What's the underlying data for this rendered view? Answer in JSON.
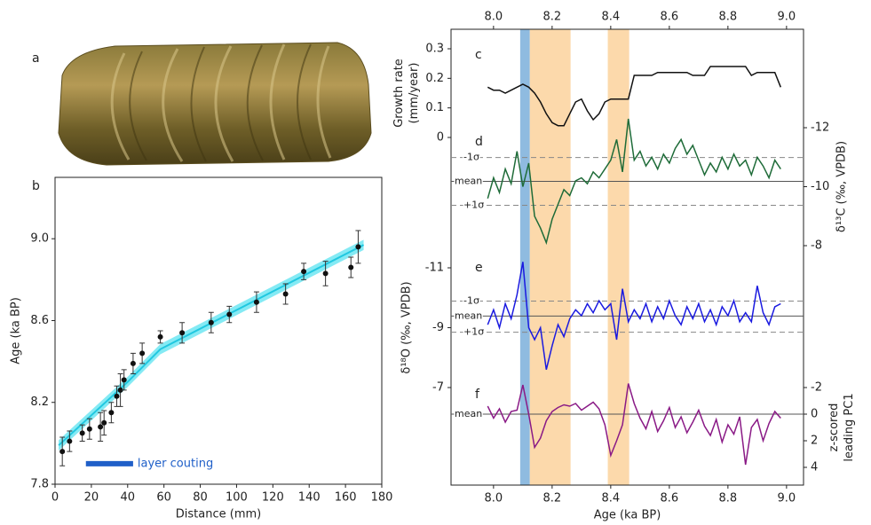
{
  "chart_data": [
    {
      "type": "scatter",
      "label": "b",
      "photo_label": "a",
      "xlabel": "Distance (mm)",
      "ylabel": "Age (ka BP)",
      "xlim": [
        0,
        180
      ],
      "ylim": [
        7.8,
        9.3
      ],
      "xticks": [
        0,
        20,
        40,
        60,
        80,
        100,
        120,
        140,
        160,
        180
      ],
      "yticks": [
        7.8,
        8.2,
        8.6,
        {
          "value": 9,
          "label": "9.0"
        }
      ],
      "x": [
        4,
        8,
        15,
        19,
        25,
        27,
        31,
        34,
        36,
        38,
        43,
        48,
        58,
        70,
        86,
        96,
        111,
        127,
        137,
        149,
        163,
        167
      ],
      "values": [
        7.96,
        8.01,
        8.05,
        8.07,
        8.08,
        8.1,
        8.15,
        8.23,
        8.26,
        8.31,
        8.39,
        8.44,
        8.52,
        8.54,
        8.59,
        8.63,
        8.69,
        8.73,
        8.84,
        8.83,
        8.86,
        8.96
      ],
      "errors": [
        0.07,
        0.05,
        0.04,
        0.05,
        0.07,
        0.06,
        0.05,
        0.05,
        0.08,
        0.05,
        0.05,
        0.05,
        0.03,
        0.05,
        0.05,
        0.04,
        0.05,
        0.05,
        0.04,
        0.06,
        0.05,
        0.08
      ],
      "color": "#111111",
      "fit": {
        "x": [
          2,
          40,
          58,
          170
        ],
        "values": [
          7.99,
          8.3,
          8.46,
          8.97
        ],
        "band": 0.025,
        "color": "#20c8e0",
        "band_color": "#6ee6f2"
      },
      "annotation": {
        "text": "layer couting",
        "range": [
          17,
          43
        ],
        "y": 7.9,
        "color": "#1f5fc8"
      }
    },
    {
      "type": "line",
      "xlabel": "Age (ka BP)",
      "xlim": [
        7.855,
        9.058
      ],
      "xticks": [
        {
          "value": 8,
          "label": "8.0"
        },
        8.2,
        8.4,
        8.6,
        8.8,
        {
          "value": 9,
          "label": "9.0"
        }
      ],
      "shaded": [
        {
          "range": [
            8.091,
            8.124
          ],
          "color": "#8fbbe0"
        },
        {
          "range": [
            8.124,
            8.263
          ],
          "color": "#fcd9ab"
        },
        {
          "range": [
            8.39,
            8.463
          ],
          "color": "#fcd9ab"
        }
      ],
      "x": [
        7.98,
        8.0,
        8.02,
        8.04,
        8.06,
        8.08,
        8.1,
        8.12,
        8.14,
        8.16,
        8.18,
        8.2,
        8.22,
        8.24,
        8.26,
        8.28,
        8.3,
        8.32,
        8.34,
        8.36,
        8.38,
        8.4,
        8.42,
        8.44,
        8.46,
        8.48,
        8.5,
        8.52,
        8.54,
        8.56,
        8.58,
        8.6,
        8.62,
        8.64,
        8.66,
        8.68,
        8.7,
        8.72,
        8.74,
        8.76,
        8.78,
        8.8,
        8.82,
        8.84,
        8.86,
        8.88,
        8.9,
        8.92,
        8.94,
        8.96,
        8.98
      ],
      "panels": [
        {
          "label": "c",
          "ylabel": [
            "Growth rate",
            "(mm/year)"
          ],
          "side": "left",
          "inverted": false,
          "ylim": [
            0,
            0.3
          ],
          "yticks": [
            0,
            0.1,
            0.2,
            0.3
          ],
          "color": "#111111",
          "values": [
            0.17,
            0.16,
            0.16,
            0.15,
            0.16,
            0.17,
            0.18,
            0.17,
            0.15,
            0.12,
            0.08,
            0.05,
            0.04,
            0.04,
            0.08,
            0.12,
            0.13,
            0.09,
            0.06,
            0.08,
            0.12,
            0.13,
            0.13,
            0.13,
            0.13,
            0.21,
            0.21,
            0.21,
            0.21,
            0.22,
            0.22,
            0.22,
            0.22,
            0.22,
            0.22,
            0.21,
            0.21,
            0.21,
            0.24,
            0.24,
            0.24,
            0.24,
            0.24,
            0.24,
            0.24,
            0.21,
            0.22,
            0.22,
            0.22,
            0.22,
            0.17
          ],
          "ref_lines": []
        },
        {
          "label": "d",
          "ylabel": [
            "δ¹³C (‰, VPDB)"
          ],
          "side": "right",
          "inverted": true,
          "ylim": [
            -12,
            -8
          ],
          "yticks": [
            -12,
            -10,
            -8
          ],
          "color": "#1e6b38",
          "values": [
            -9.6,
            -10.3,
            -9.8,
            -10.6,
            -10.1,
            -11.2,
            -10.0,
            -10.8,
            -9.0,
            -8.6,
            -8.1,
            -8.9,
            -9.4,
            -9.9,
            -9.7,
            -10.2,
            -10.3,
            -10.1,
            -10.5,
            -10.3,
            -10.6,
            -10.9,
            -11.6,
            -10.5,
            -12.3,
            -10.9,
            -11.2,
            -10.7,
            -11.0,
            -10.6,
            -11.1,
            -10.8,
            -11.3,
            -11.6,
            -11.1,
            -11.4,
            -10.9,
            -10.4,
            -10.8,
            -10.5,
            -11.0,
            -10.6,
            -11.1,
            -10.7,
            -10.9,
            -10.4,
            -11.0,
            -10.7,
            -10.3,
            -10.9,
            -10.6
          ],
          "ref_lines": [
            {
              "label": "-1σ",
              "value": -10.99,
              "dashed": true
            },
            {
              "label": "mean",
              "value": -10.18,
              "dashed": false
            },
            {
              "label": "+1σ",
              "value": -9.37,
              "dashed": true
            }
          ]
        },
        {
          "label": "e",
          "ylabel": [
            "δ¹⁸O (‰, VPDB)"
          ],
          "side": "left",
          "inverted": true,
          "ylim": [
            -11,
            -7
          ],
          "yticks": [
            -11,
            -9,
            -7
          ],
          "color": "#1a1ae0",
          "values": [
            -9.1,
            -9.6,
            -9.0,
            -9.8,
            -9.3,
            -10.1,
            -11.2,
            -9.0,
            -8.6,
            -9.0,
            -7.6,
            -8.4,
            -9.1,
            -8.7,
            -9.3,
            -9.6,
            -9.4,
            -9.8,
            -9.5,
            -9.9,
            -9.6,
            -9.8,
            -8.6,
            -10.3,
            -9.2,
            -9.6,
            -9.3,
            -9.8,
            -9.2,
            -9.7,
            -9.3,
            -9.9,
            -9.4,
            -9.1,
            -9.7,
            -9.3,
            -9.8,
            -9.2,
            -9.6,
            -9.1,
            -9.7,
            -9.4,
            -9.9,
            -9.2,
            -9.5,
            -9.2,
            -10.4,
            -9.5,
            -9.1,
            -9.7,
            -9.8
          ],
          "ref_lines": [
            {
              "label": "-1σ",
              "value": -9.89,
              "dashed": true
            },
            {
              "label": "mean",
              "value": -9.39,
              "dashed": false
            },
            {
              "label": "+1σ",
              "value": -8.85,
              "dashed": true
            }
          ]
        },
        {
          "label": "f",
          "ylabel": [
            "z-scored",
            "leading PC1"
          ],
          "side": "right",
          "inverted": true,
          "ylim": [
            -2,
            4
          ],
          "yticks": [
            -2,
            0,
            2,
            4
          ],
          "color": "#8a1a86",
          "values": [
            -0.6,
            0.3,
            -0.4,
            0.6,
            -0.2,
            -0.3,
            -2.2,
            0.0,
            2.5,
            1.8,
            0.5,
            -0.2,
            -0.5,
            -0.7,
            -0.6,
            -0.8,
            -0.3,
            -0.6,
            -0.9,
            -0.4,
            0.8,
            3.1,
            2.0,
            0.8,
            -2.3,
            -0.8,
            0.3,
            1.1,
            -0.2,
            1.3,
            0.5,
            -0.5,
            1.0,
            0.2,
            1.4,
            0.6,
            -0.3,
            0.9,
            1.6,
            0.4,
            2.1,
            0.8,
            1.5,
            0.2,
            3.8,
            1.0,
            0.4,
            2.0,
            0.7,
            -0.2,
            0.3
          ],
          "ref_lines": [
            {
              "label": "mean",
              "value": 0,
              "dashed": false
            }
          ]
        }
      ]
    }
  ]
}
